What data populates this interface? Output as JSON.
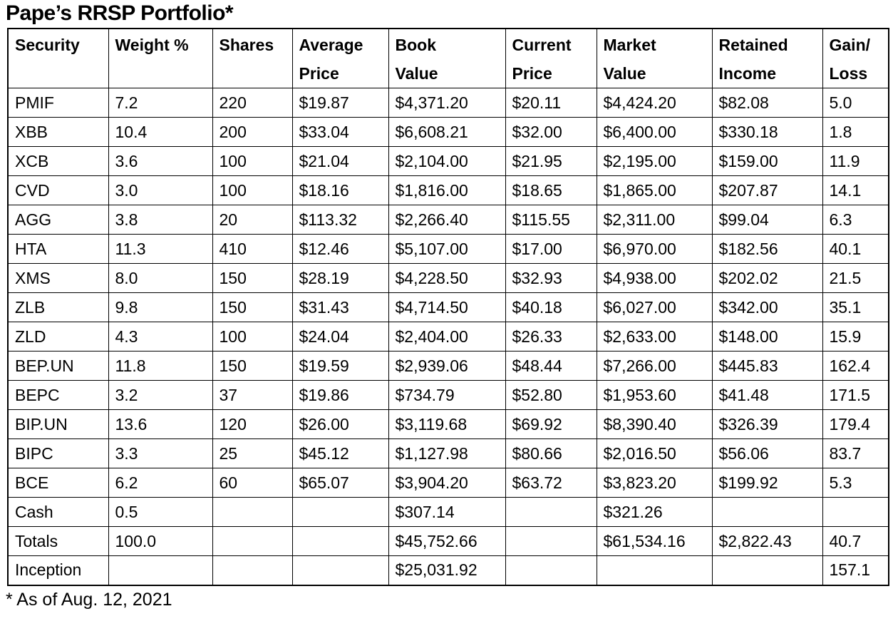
{
  "chart_data": {
    "type": "table",
    "title": "Pape’s RRSP Portfolio*",
    "footnote": "* As of Aug. 12, 2021",
    "columns": [
      {
        "id": "security",
        "label": "Security"
      },
      {
        "id": "weight-pct",
        "label": "Weight %"
      },
      {
        "id": "shares",
        "label": "Shares"
      },
      {
        "id": "average-price",
        "label": "Average\nPrice"
      },
      {
        "id": "book-value",
        "label": "Book\nValue"
      },
      {
        "id": "current-price",
        "label": "Current\nPrice"
      },
      {
        "id": "market-value",
        "label": "Market\nValue"
      },
      {
        "id": "retained-income",
        "label": "Retained\nIncome"
      },
      {
        "id": "gain-loss",
        "label": "Gain/\nLoss"
      }
    ],
    "rows": [
      [
        "PMIF",
        "7.2",
        "220",
        "$19.87",
        "$4,371.20",
        "$20.11",
        "$4,424.20",
        "$82.08",
        "5.0"
      ],
      [
        "XBB",
        "10.4",
        "200",
        "$33.04",
        "$6,608.21",
        "$32.00",
        "$6,400.00",
        "$330.18",
        "1.8"
      ],
      [
        "XCB",
        "3.6",
        "100",
        "$21.04",
        "$2,104.00",
        "$21.95",
        "$2,195.00",
        "$159.00",
        "11.9"
      ],
      [
        "CVD",
        "3.0",
        "100",
        "$18.16",
        "$1,816.00",
        "$18.65",
        "$1,865.00",
        "$207.87",
        "14.1"
      ],
      [
        "AGG",
        "3.8",
        "20",
        "$113.32",
        "$2,266.40",
        "$115.55",
        "$2,311.00",
        "$99.04",
        "6.3"
      ],
      [
        "HTA",
        "11.3",
        "410",
        "$12.46",
        "$5,107.00",
        "$17.00",
        "$6,970.00",
        "$182.56",
        "40.1"
      ],
      [
        "XMS",
        "8.0",
        "150",
        "$28.19",
        "$4,228.50",
        "$32.93",
        "$4,938.00",
        "$202.02",
        "21.5"
      ],
      [
        "ZLB",
        "9.8",
        "150",
        "$31.43",
        "$4,714.50",
        "$40.18",
        "$6,027.00",
        "$342.00",
        "35.1"
      ],
      [
        "ZLD",
        "4.3",
        "100",
        "$24.04",
        "$2,404.00",
        "$26.33",
        "$2,633.00",
        "$148.00",
        "15.9"
      ],
      [
        "BEP.UN",
        "11.8",
        "150",
        "$19.59",
        "$2,939.06",
        "$48.44",
        "$7,266.00",
        "$445.83",
        "162.4"
      ],
      [
        "BEPC",
        "3.2",
        "37",
        "$19.86",
        "$734.79",
        "$52.80",
        "$1,953.60",
        "$41.48",
        "171.5"
      ],
      [
        "BIP.UN",
        "13.6",
        "120",
        "$26.00",
        "$3,119.68",
        "$69.92",
        "$8,390.40",
        "$326.39",
        "179.4"
      ],
      [
        "BIPC",
        "3.3",
        "25",
        "$45.12",
        "$1,127.98",
        "$80.66",
        "$2,016.50",
        "$56.06",
        "83.7"
      ],
      [
        "BCE",
        "6.2",
        "60",
        "$65.07",
        "$3,904.20",
        "$63.72",
        "$3,823.20",
        "$199.92",
        "5.3"
      ],
      [
        "Cash",
        "0.5",
        "",
        "",
        "$307.14",
        "",
        "$321.26",
        "",
        ""
      ],
      [
        "Totals",
        "100.0",
        "",
        "",
        "$45,752.66",
        "",
        "$61,534.16",
        "$2,822.43",
        "40.7"
      ],
      [
        "Inception",
        "",
        "",
        "",
        "$25,031.92",
        "",
        "",
        "",
        "157.1"
      ]
    ]
  },
  "colors": {
    "background": "#ffffff",
    "border": "#000000",
    "text": "#000000"
  }
}
